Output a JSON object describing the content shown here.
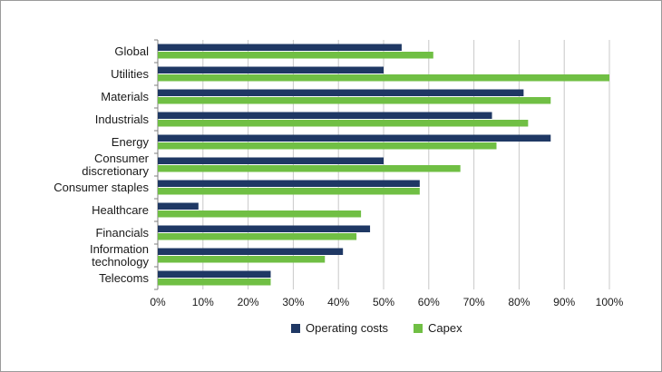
{
  "chart_data": {
    "type": "bar",
    "orientation": "horizontal",
    "categories": [
      [
        "Global"
      ],
      [
        "Utilities"
      ],
      [
        "Materials"
      ],
      [
        "Industrials"
      ],
      [
        "Energy"
      ],
      [
        "Consumer",
        "discretionary"
      ],
      [
        "Consumer staples"
      ],
      [
        "Healthcare"
      ],
      [
        "Financials"
      ],
      [
        "Information",
        "technology"
      ],
      [
        "Telecoms"
      ]
    ],
    "series": [
      {
        "name": "Operating costs",
        "color": "#1f3864",
        "values": [
          54,
          50,
          81,
          74,
          87,
          50,
          58,
          9,
          47,
          41,
          25
        ]
      },
      {
        "name": "Capex",
        "color": "#70bf44",
        "values": [
          61,
          100,
          87,
          82,
          75,
          67,
          58,
          45,
          44,
          37,
          25
        ]
      }
    ],
    "xlim": [
      0,
      100
    ],
    "xticks": [
      "0%",
      "10%",
      "20%",
      "30%",
      "40%",
      "50%",
      "60%",
      "70%",
      "80%",
      "90%",
      "100%"
    ],
    "grid": "vertical",
    "legend_position": "bottom"
  }
}
